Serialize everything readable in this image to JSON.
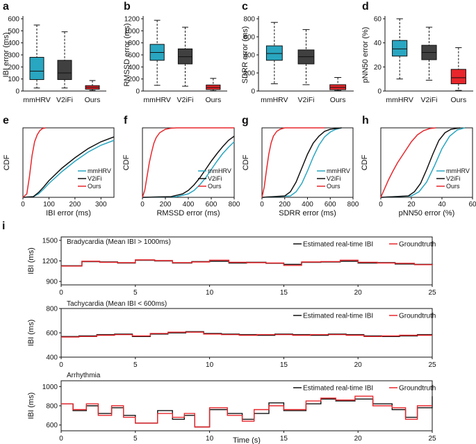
{
  "chart_data": [
    {
      "panel": "a",
      "type": "box",
      "ylabel": "IBI error (ms)",
      "ylim": [
        0,
        600
      ],
      "yticks": [
        0,
        100,
        200,
        300,
        400,
        500,
        600
      ],
      "categories": [
        "mmHRV",
        "V2iFi",
        "Ours"
      ],
      "boxes": [
        {
          "name": "mmHRV",
          "min": 25,
          "q1": 95,
          "median": 165,
          "q3": 280,
          "max": 548,
          "color": "#29a6c1"
        },
        {
          "name": "V2iFi",
          "min": 25,
          "q1": 95,
          "median": 150,
          "q3": 255,
          "max": 492,
          "color": "#404040"
        },
        {
          "name": "Ours",
          "min": 5,
          "q1": 15,
          "median": 30,
          "q3": 45,
          "max": 87,
          "color": "#e8262b"
        }
      ]
    },
    {
      "panel": "b",
      "type": "box",
      "ylabel": "RMSSD error (ms)",
      "ylim": [
        0,
        1200
      ],
      "yticks": [
        0,
        200,
        400,
        600,
        800,
        1000,
        1200
      ],
      "categories": [
        "mmHRV",
        "V2iFi",
        "Ours"
      ],
      "boxes": [
        {
          "name": "mmHRV",
          "min": 95,
          "q1": 510,
          "median": 640,
          "q3": 775,
          "max": 1175,
          "color": "#29a6c1"
        },
        {
          "name": "V2iFi",
          "min": 80,
          "q1": 450,
          "median": 570,
          "q3": 700,
          "max": 1060,
          "color": "#404040"
        },
        {
          "name": "Ours",
          "min": 5,
          "q1": 25,
          "median": 60,
          "q3": 100,
          "max": 210,
          "color": "#e8262b"
        }
      ]
    },
    {
      "panel": "c",
      "type": "box",
      "ylabel": "SDRR error (ms)",
      "ylim": [
        0,
        800
      ],
      "yticks": [
        0,
        200,
        400,
        600,
        800
      ],
      "categories": [
        "mmHRV",
        "V2iFi",
        "Ours"
      ],
      "boxes": [
        {
          "name": "mmHRV",
          "min": 80,
          "q1": 340,
          "median": 415,
          "q3": 500,
          "max": 760,
          "color": "#29a6c1"
        },
        {
          "name": "V2iFi",
          "min": 70,
          "q1": 300,
          "median": 380,
          "q3": 455,
          "max": 680,
          "color": "#404040"
        },
        {
          "name": "Ours",
          "min": 5,
          "q1": 15,
          "median": 40,
          "q3": 70,
          "max": 150,
          "color": "#e8262b"
        }
      ]
    },
    {
      "panel": "d",
      "type": "box",
      "ylabel": "pNN50 error (%)",
      "ylim": [
        0,
        60
      ],
      "yticks": [
        0,
        20,
        40,
        60
      ],
      "categories": [
        "mmHRV",
        "V2iFi",
        "Ours"
      ],
      "boxes": [
        {
          "name": "mmHRV",
          "min": 10,
          "q1": 29,
          "median": 35,
          "q3": 42,
          "max": 60,
          "color": "#29a6c1"
        },
        {
          "name": "V2iFi",
          "min": 9,
          "q1": 26,
          "median": 32,
          "q3": 38,
          "max": 53,
          "color": "#404040"
        },
        {
          "name": "Ours",
          "min": 0.5,
          "q1": 6,
          "median": 11,
          "q3": 18,
          "max": 36,
          "color": "#e8262b"
        }
      ]
    },
    {
      "panel": "e",
      "type": "line",
      "ylabel": "CDF",
      "xlabel": "IBI error (ms)",
      "xlim": [
        0,
        350
      ],
      "ylim": [
        0,
        1
      ],
      "xticks": [
        0,
        100,
        200,
        300
      ],
      "legend": "lower-right",
      "series": [
        {
          "name": "mmHRV",
          "color": "#29a6c1",
          "x": [
            0,
            40,
            60,
            80,
            100,
            150,
            200,
            250,
            300,
            350
          ],
          "y": [
            0,
            0.01,
            0.05,
            0.12,
            0.2,
            0.37,
            0.52,
            0.65,
            0.75,
            0.82
          ]
        },
        {
          "name": "V2iFi",
          "color": "#111111",
          "x": [
            0,
            40,
            60,
            80,
            100,
            150,
            200,
            250,
            300,
            350
          ],
          "y": [
            0,
            0.01,
            0.07,
            0.15,
            0.24,
            0.42,
            0.57,
            0.7,
            0.8,
            0.87
          ]
        },
        {
          "name": "Ours",
          "color": "#e8262b",
          "x": [
            0,
            15,
            25,
            35,
            45,
            55,
            65,
            75,
            87
          ],
          "y": [
            0,
            0.05,
            0.3,
            0.6,
            0.8,
            0.9,
            0.96,
            0.99,
            1
          ]
        }
      ]
    },
    {
      "panel": "f",
      "type": "line",
      "ylabel": "CDF",
      "xlabel": "RMSSD error (ms)",
      "xlim": [
        0,
        800
      ],
      "ylim": [
        0,
        1
      ],
      "xticks": [
        0,
        200,
        400,
        600,
        800
      ],
      "legend": "lower-right",
      "series": [
        {
          "name": "mmHRV",
          "color": "#29a6c1",
          "x": [
            0,
            300,
            400,
            450,
            500,
            550,
            600,
            650,
            700,
            750,
            800
          ],
          "y": [
            0,
            0.01,
            0.05,
            0.1,
            0.18,
            0.28,
            0.4,
            0.52,
            0.63,
            0.72,
            0.8
          ]
        },
        {
          "name": "V2iFi",
          "color": "#111111",
          "x": [
            0,
            250,
            350,
            400,
            450,
            500,
            550,
            600,
            650,
            700,
            750,
            800
          ],
          "y": [
            0,
            0.01,
            0.05,
            0.1,
            0.18,
            0.28,
            0.4,
            0.52,
            0.63,
            0.73,
            0.82,
            0.88
          ]
        },
        {
          "name": "Ours",
          "color": "#e8262b",
          "x": [
            0,
            20,
            40,
            60,
            80,
            100,
            120,
            150,
            200,
            250,
            300,
            800
          ],
          "y": [
            0,
            0.1,
            0.3,
            0.5,
            0.65,
            0.78,
            0.86,
            0.93,
            0.98,
            0.995,
            1,
            1
          ]
        }
      ]
    },
    {
      "panel": "g",
      "type": "line",
      "ylabel": "CDF",
      "xlabel": "SDRR error (ms)",
      "xlim": [
        0,
        800
      ],
      "ylim": [
        0,
        1
      ],
      "xticks": [
        0,
        200,
        400,
        600,
        800
      ],
      "legend": "lower-right",
      "series": [
        {
          "name": "mmHRV",
          "color": "#29a6c1",
          "x": [
            0,
            250,
            300,
            350,
            400,
            450,
            500,
            550,
            600,
            650,
            700
          ],
          "y": [
            0,
            0.02,
            0.08,
            0.2,
            0.38,
            0.58,
            0.75,
            0.87,
            0.94,
            0.98,
            1
          ]
        },
        {
          "name": "V2iFi",
          "color": "#111111",
          "x": [
            0,
            200,
            250,
            300,
            350,
            400,
            450,
            500,
            550,
            600,
            700
          ],
          "y": [
            0,
            0.02,
            0.08,
            0.22,
            0.42,
            0.62,
            0.78,
            0.88,
            0.95,
            0.98,
            1
          ]
        },
        {
          "name": "Ours",
          "color": "#e8262b",
          "x": [
            0,
            20,
            40,
            60,
            80,
            100,
            130,
            160,
            200,
            550
          ],
          "y": [
            0,
            0.15,
            0.4,
            0.62,
            0.78,
            0.88,
            0.95,
            0.98,
            1,
            1
          ]
        }
      ]
    },
    {
      "panel": "h",
      "type": "line",
      "ylabel": "CDF",
      "xlabel": "pNN50 error (%)",
      "xlim": [
        0,
        60
      ],
      "ylim": [
        0,
        1
      ],
      "xticks": [
        0,
        20,
        40,
        60
      ],
      "legend": "lower-right",
      "series": [
        {
          "name": "mmHRV",
          "color": "#29a6c1",
          "x": [
            0,
            20,
            25,
            30,
            35,
            40,
            45,
            50,
            55
          ],
          "y": [
            0,
            0.02,
            0.08,
            0.22,
            0.45,
            0.7,
            0.88,
            0.97,
            1
          ]
        },
        {
          "name": "V2iFi",
          "color": "#111111",
          "x": [
            0,
            18,
            22,
            26,
            30,
            34,
            38,
            42,
            46,
            52
          ],
          "y": [
            0,
            0.02,
            0.08,
            0.2,
            0.4,
            0.62,
            0.82,
            0.93,
            0.98,
            1
          ]
        },
        {
          "name": "Ours",
          "color": "#e8262b",
          "x": [
            0,
            2,
            5,
            8,
            11,
            14,
            17,
            20,
            24,
            28,
            32,
            36
          ],
          "y": [
            0,
            0.1,
            0.25,
            0.38,
            0.5,
            0.6,
            0.7,
            0.8,
            0.9,
            0.96,
            0.99,
            1
          ]
        }
      ]
    },
    {
      "panel": "i1",
      "type": "line",
      "subtitle": "Bradycardia (Mean IBI > 1000ms)",
      "ylabel": "IBI (ms)",
      "xlim": [
        0,
        25
      ],
      "ylim": [
        850,
        1550
      ],
      "yticks": [
        900,
        1200,
        1500
      ],
      "xticks": [
        0,
        5,
        10,
        15,
        20,
        25
      ],
      "legend": "top-right",
      "series": [
        {
          "name": "Estimated real-time IBI",
          "color": "#111111",
          "step": true,
          "x": [
            0,
            1.4,
            2.6,
            3.8,
            5,
            6.3,
            7.5,
            8.8,
            10,
            11.3,
            12.5,
            13.8,
            15,
            16.2,
            17.5,
            18.8,
            20,
            21.3,
            22.5,
            23.8,
            25
          ],
          "y": [
            1130,
            1190,
            1185,
            1170,
            1210,
            1200,
            1170,
            1190,
            1195,
            1170,
            1180,
            1165,
            1150,
            1180,
            1185,
            1195,
            1170,
            1175,
            1155,
            1150,
            1140
          ]
        },
        {
          "name": "Groundtruth",
          "color": "#e8262b",
          "step": true,
          "x": [
            0,
            1.4,
            2.6,
            3.8,
            5,
            6.3,
            7.5,
            8.8,
            10,
            11.3,
            12.5,
            13.8,
            15,
            16.2,
            17.5,
            18.8,
            20,
            21.3,
            22.5,
            23.8,
            25
          ],
          "y": [
            1125,
            1195,
            1180,
            1175,
            1215,
            1205,
            1175,
            1185,
            1210,
            1180,
            1175,
            1170,
            1135,
            1185,
            1190,
            1210,
            1180,
            1170,
            1165,
            1145,
            1135
          ]
        }
      ]
    },
    {
      "panel": "i2",
      "type": "line",
      "subtitle": "Tachycardia (Mean IBI < 600ms)",
      "ylabel": "IBI (ms)",
      "xlim": [
        0,
        25
      ],
      "ylim": [
        400,
        800
      ],
      "yticks": [
        400,
        600,
        800
      ],
      "xticks": [
        0,
        5,
        10,
        15,
        20,
        25
      ],
      "legend": "top-right",
      "series": [
        {
          "name": "Estimated real-time IBI",
          "color": "#111111",
          "step": true,
          "x": [
            0,
            1.2,
            2.4,
            3.6,
            4.8,
            6,
            7.2,
            8.4,
            9.6,
            10.8,
            12,
            13.2,
            14.4,
            15.6,
            16.8,
            18,
            19.2,
            20.4,
            21.6,
            22.8,
            24,
            25
          ],
          "y": [
            570,
            575,
            585,
            590,
            570,
            590,
            600,
            610,
            595,
            590,
            585,
            580,
            590,
            585,
            580,
            590,
            585,
            575,
            570,
            575,
            585,
            585
          ]
        },
        {
          "name": "Groundtruth",
          "color": "#e8262b",
          "step": true,
          "x": [
            0,
            1.2,
            2.4,
            3.6,
            4.8,
            6,
            7.2,
            8.4,
            9.6,
            10.8,
            12,
            13.2,
            14.4,
            15.6,
            16.8,
            18,
            19.2,
            20.4,
            21.6,
            22.8,
            24,
            25
          ],
          "y": [
            565,
            570,
            580,
            585,
            575,
            595,
            605,
            605,
            590,
            585,
            580,
            585,
            585,
            580,
            585,
            585,
            580,
            570,
            575,
            580,
            580,
            580
          ]
        }
      ]
    },
    {
      "panel": "i3",
      "type": "line",
      "subtitle": "Arrhythmia",
      "ylabel": "IBI (ms)",
      "xlabel": "Time (s)",
      "xlim": [
        0,
        25
      ],
      "ylim": [
        540,
        1060
      ],
      "yticks": [
        600,
        800,
        1000
      ],
      "xticks": [
        0,
        5,
        10,
        15,
        20,
        25
      ],
      "legend": "top-right",
      "series": [
        {
          "name": "Estimated real-time IBI",
          "color": "#111111",
          "step": true,
          "x": [
            0,
            0.8,
            1.7,
            2.5,
            3.4,
            4.2,
            5,
            6.5,
            7.5,
            8.3,
            9,
            10,
            11.2,
            12.2,
            13,
            14,
            15,
            16.5,
            17.5,
            18.5,
            19.8,
            21,
            22.3,
            23.2,
            24,
            25
          ],
          "y": [
            820,
            750,
            800,
            720,
            780,
            700,
            620,
            750,
            660,
            700,
            580,
            760,
            720,
            660,
            720,
            830,
            750,
            820,
            870,
            850,
            870,
            820,
            760,
            680,
            780,
            900
          ]
        },
        {
          "name": "Groundtruth",
          "color": "#e8262b",
          "step": true,
          "x": [
            0,
            0.8,
            1.7,
            2.5,
            3.4,
            4.2,
            5,
            6.5,
            7.5,
            8.3,
            9,
            10,
            11.2,
            12.2,
            13,
            14,
            15,
            16.5,
            17.5,
            18.5,
            19.8,
            21,
            22.3,
            23.2,
            24,
            25
          ],
          "y": [
            820,
            760,
            820,
            700,
            800,
            680,
            620,
            720,
            680,
            720,
            580,
            780,
            700,
            640,
            760,
            800,
            760,
            850,
            880,
            860,
            900,
            800,
            780,
            660,
            800,
            800
          ]
        }
      ]
    }
  ]
}
